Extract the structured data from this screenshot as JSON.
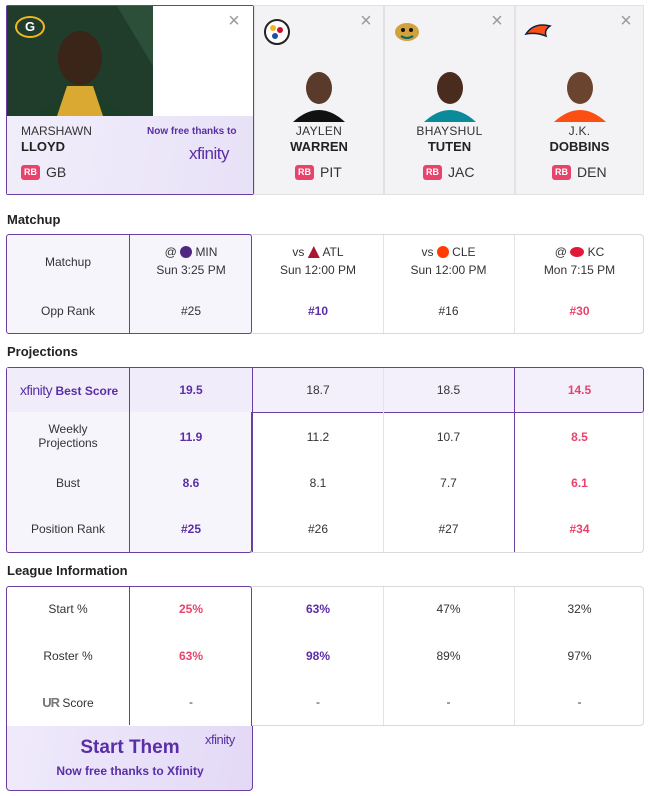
{
  "players": [
    {
      "first": "MARSHAWN",
      "last": "LLOYD",
      "pos": "RB",
      "team": "GB",
      "promo": "Now free thanks to",
      "promo_brand": "xfinity"
    },
    {
      "first": "JAYLEN",
      "last": "WARREN",
      "pos": "RB",
      "team": "PIT"
    },
    {
      "first": "BHAYSHUL",
      "last": "TUTEN",
      "pos": "RB",
      "team": "JAC"
    },
    {
      "first": "J.K.",
      "last": "DOBBINS",
      "pos": "RB",
      "team": "DEN"
    }
  ],
  "close_glyph": "×",
  "matchup": {
    "title": "Matchup",
    "row_labels": [
      "Matchup",
      "Opp Rank"
    ],
    "cols": [
      {
        "prefix": "@",
        "opp": "MIN",
        "time": "Sun 3:25 PM",
        "rank": "#25"
      },
      {
        "prefix": "vs",
        "opp": "ATL",
        "time": "Sun 12:00 PM",
        "rank": "#10"
      },
      {
        "prefix": "vs",
        "opp": "CLE",
        "time": "Sun 12:00 PM",
        "rank": "#16"
      },
      {
        "prefix": "@",
        "opp": "KC",
        "time": "Mon 7:15 PM",
        "rank": "#30"
      }
    ]
  },
  "projections": {
    "title": "Projections",
    "best_brand": "xfinity",
    "best_label": "Best Score",
    "labels": [
      "Weekly Projections",
      "Bust",
      "Position Rank"
    ],
    "cols": [
      {
        "best": "19.5",
        "weekly": "11.9",
        "bust": "8.6",
        "rank": "#25"
      },
      {
        "best": "18.7",
        "weekly": "11.2",
        "bust": "8.1",
        "rank": "#26"
      },
      {
        "best": "18.5",
        "weekly": "10.7",
        "bust": "7.7",
        "rank": "#27"
      },
      {
        "best": "14.5",
        "weekly": "8.5",
        "bust": "6.1",
        "rank": "#34"
      }
    ]
  },
  "league": {
    "title": "League Information",
    "labels": [
      "Start %",
      "Roster %",
      "Score"
    ],
    "cols": [
      {
        "start": "25%",
        "roster": "63%",
        "score": "-"
      },
      {
        "start": "63%",
        "roster": "98%",
        "score": "-"
      },
      {
        "start": "47%",
        "roster": "89%",
        "score": "-"
      },
      {
        "start": "32%",
        "roster": "97%",
        "score": "-"
      }
    ]
  },
  "cta": {
    "title": "Start Them",
    "sub": "Now free thanks to Xfinity",
    "brand": "xfinity"
  },
  "colors": {
    "accent": "#5a2ea6",
    "red": "#e8446b",
    "border": "#6b3fa0"
  }
}
